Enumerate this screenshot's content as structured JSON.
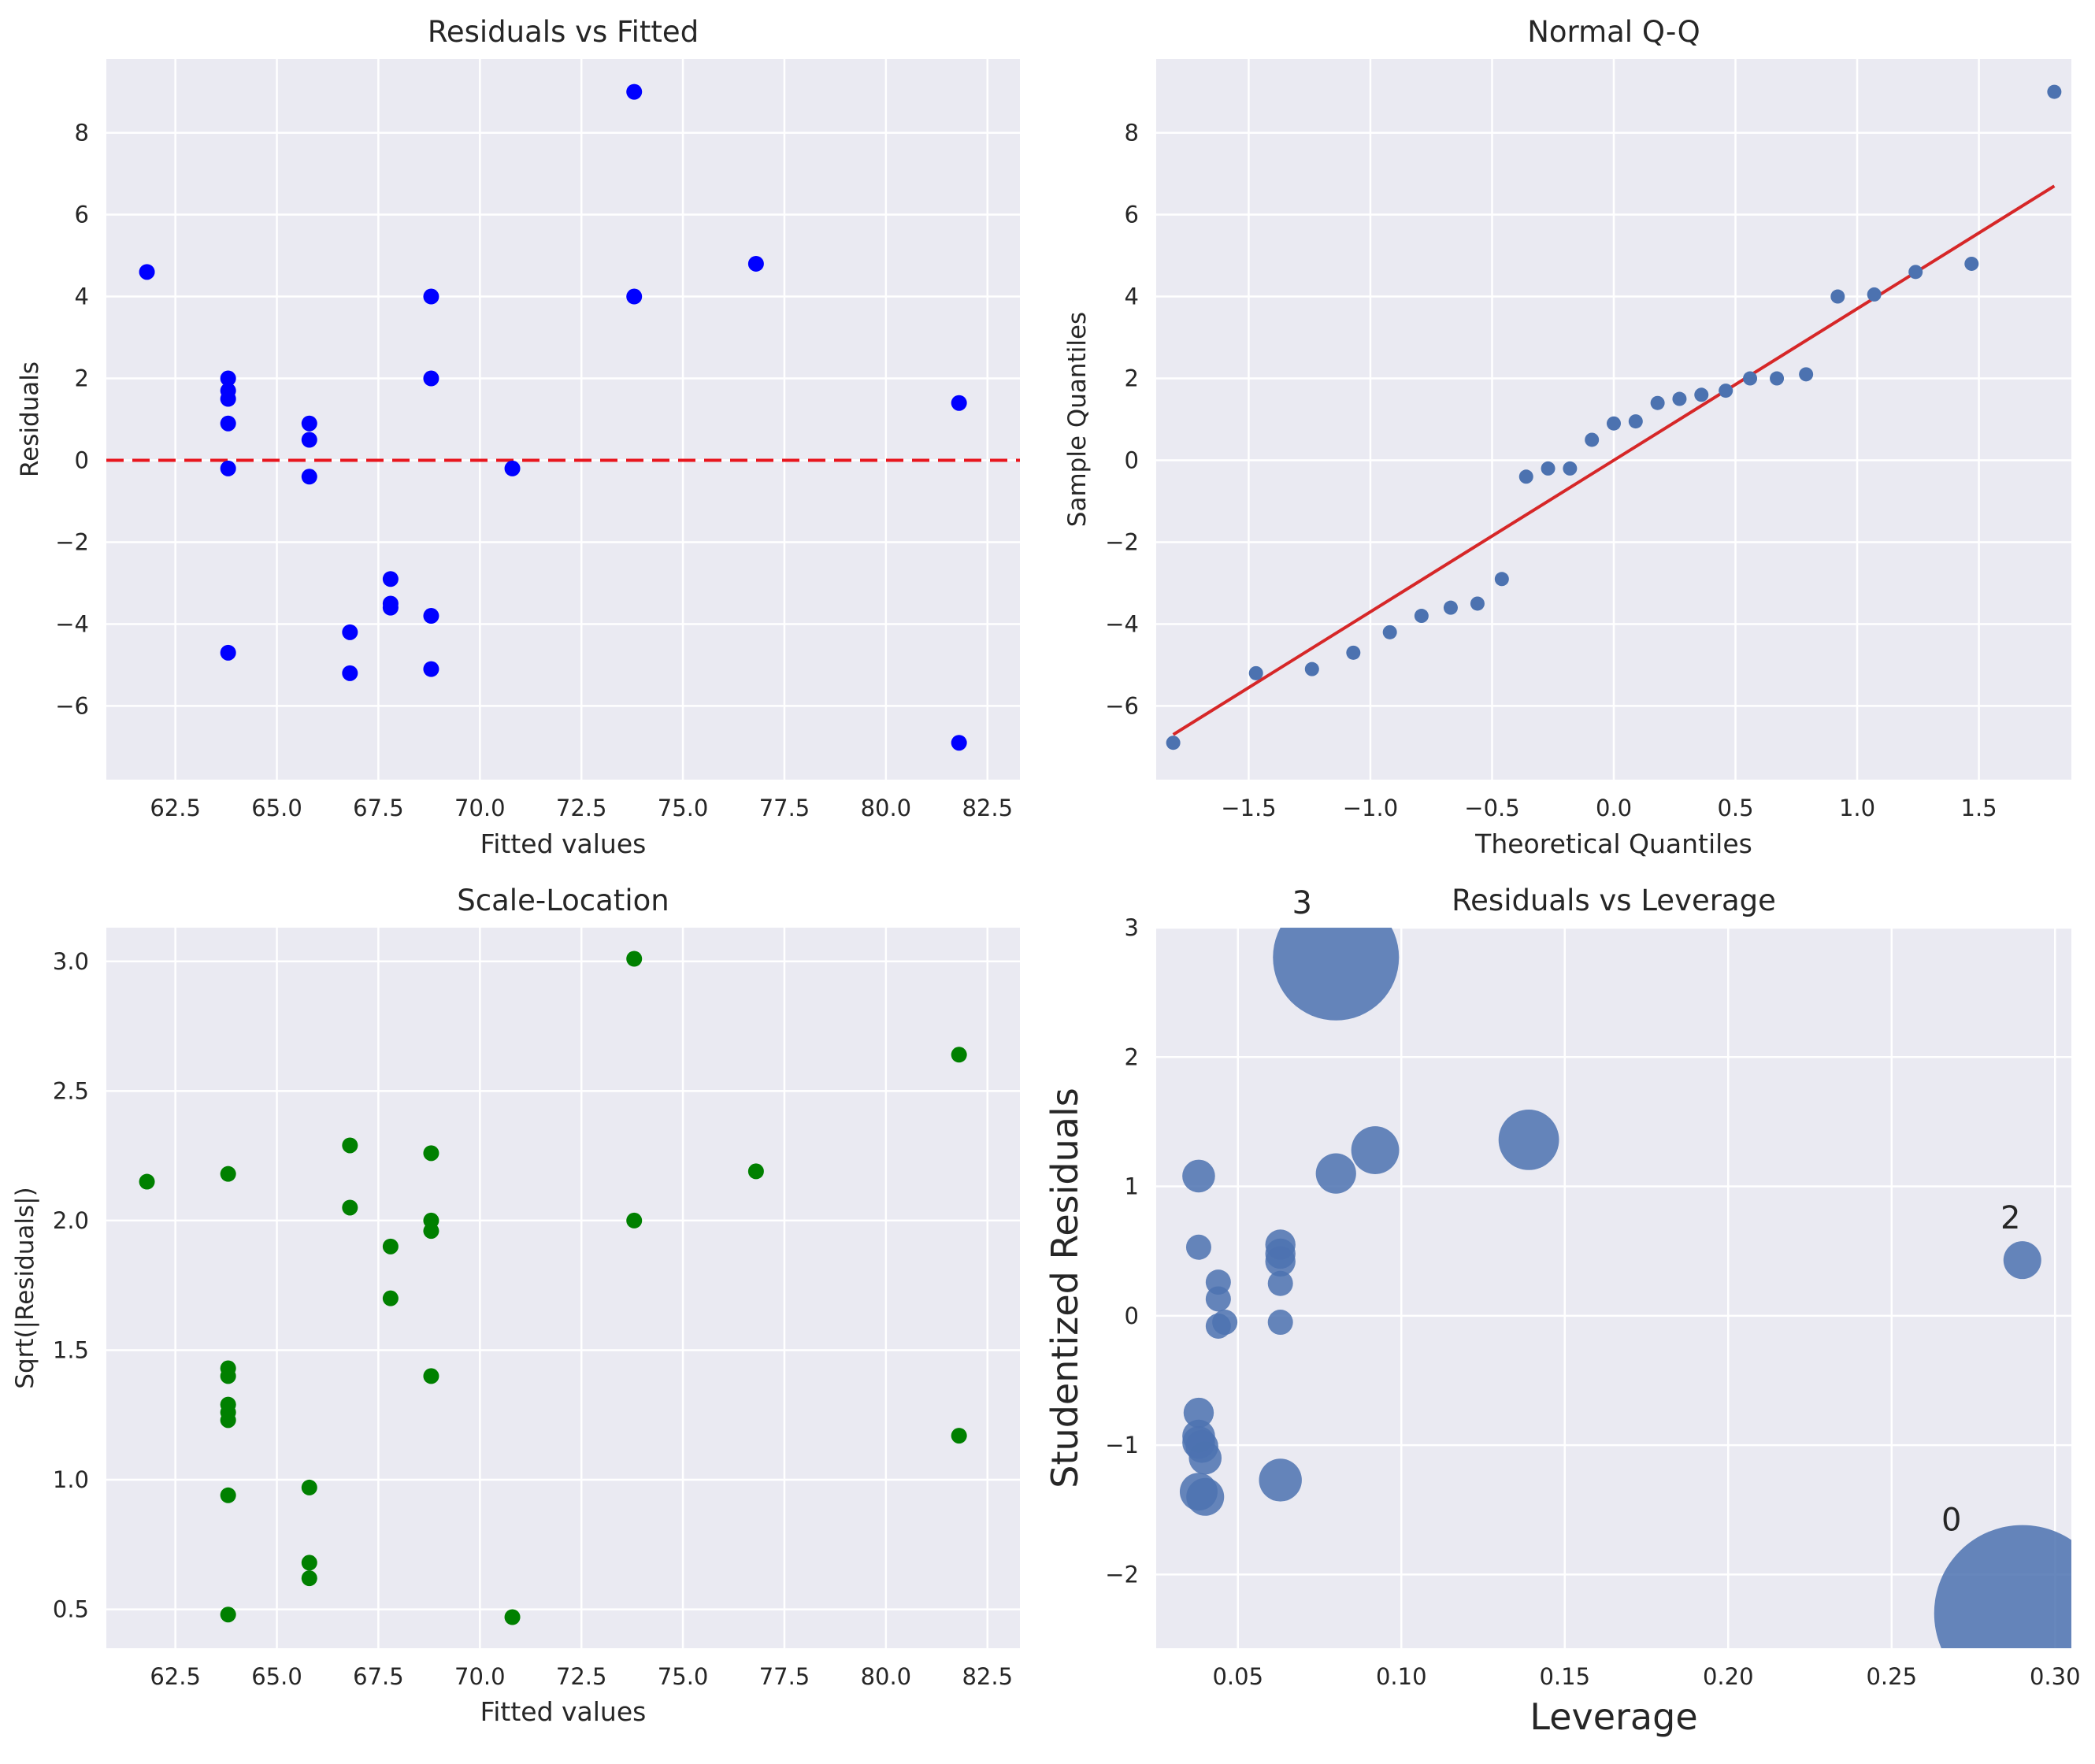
{
  "chart_data": [
    {
      "id": "residuals-vs-fitted",
      "type": "scatter",
      "title": "Residuals vs Fitted",
      "xlabel": "Fitted values",
      "ylabel": "Residuals",
      "xlim": [
        60.8,
        83.3
      ],
      "ylim": [
        -7.8,
        9.8
      ],
      "xticks": [
        62.5,
        65.0,
        67.5,
        70.0,
        72.5,
        75.0,
        77.5,
        80.0,
        82.5
      ],
      "xtick_labels": [
        "62.5",
        "65.0",
        "67.5",
        "70.0",
        "72.5",
        "75.0",
        "77.5",
        "80.0",
        "82.5"
      ],
      "yticks": [
        -6,
        -4,
        -2,
        0,
        2,
        4,
        6,
        8
      ],
      "ytick_labels": [
        "−6",
        "−4",
        "−2",
        "0",
        "2",
        "4",
        "6",
        "8"
      ],
      "color": "#0000ff",
      "hline": {
        "y": 0,
        "color": "#e8171f",
        "style": "dashed"
      },
      "points": [
        {
          "x": 61.8,
          "y": 4.6
        },
        {
          "x": 63.8,
          "y": 2.0
        },
        {
          "x": 63.8,
          "y": 1.7
        },
        {
          "x": 63.8,
          "y": 1.5
        },
        {
          "x": 63.8,
          "y": 0.9
        },
        {
          "x": 63.8,
          "y": -0.2
        },
        {
          "x": 63.8,
          "y": -4.7
        },
        {
          "x": 65.8,
          "y": 0.9
        },
        {
          "x": 65.8,
          "y": 0.5
        },
        {
          "x": 65.8,
          "y": -0.4
        },
        {
          "x": 66.8,
          "y": -4.2
        },
        {
          "x": 66.8,
          "y": -5.2
        },
        {
          "x": 67.8,
          "y": -2.9
        },
        {
          "x": 67.8,
          "y": -3.6
        },
        {
          "x": 67.8,
          "y": -3.5
        },
        {
          "x": 68.8,
          "y": 4.0
        },
        {
          "x": 68.8,
          "y": 2.0
        },
        {
          "x": 68.8,
          "y": -3.8
        },
        {
          "x": 68.8,
          "y": -5.1
        },
        {
          "x": 70.8,
          "y": -0.2
        },
        {
          "x": 73.8,
          "y": 9.0
        },
        {
          "x": 73.8,
          "y": 4.0
        },
        {
          "x": 76.8,
          "y": 4.8
        },
        {
          "x": 81.8,
          "y": 1.4
        },
        {
          "x": 81.8,
          "y": -6.9
        }
      ]
    },
    {
      "id": "normal-qq",
      "type": "scatter",
      "title": "Normal Q-Q",
      "xlabel": "Theoretical Quantiles",
      "ylabel": "Sample Quantiles",
      "xlim": [
        -1.88,
        1.88
      ],
      "ylim": [
        -7.8,
        9.8
      ],
      "xticks": [
        -1.5,
        -1.0,
        -0.5,
        0.0,
        0.5,
        1.0,
        1.5
      ],
      "xtick_labels": [
        "−1.5",
        "−1.0",
        "−0.5",
        "0.0",
        "0.5",
        "1.0",
        "1.5"
      ],
      "yticks": [
        -6,
        -4,
        -2,
        0,
        2,
        4,
        6,
        8
      ],
      "ytick_labels": [
        "−6",
        "−4",
        "−2",
        "0",
        "2",
        "4",
        "6",
        "8"
      ],
      "color": "#4c72b0",
      "reference_line": {
        "x": [
          -1.81,
          1.81
        ],
        "y": [
          -6.7,
          6.7
        ],
        "color": "#d62728"
      },
      "points": [
        {
          "x": -1.81,
          "y": -6.9
        },
        {
          "x": -1.47,
          "y": -5.2
        },
        {
          "x": -1.24,
          "y": -5.1
        },
        {
          "x": -1.07,
          "y": -4.7
        },
        {
          "x": -0.92,
          "y": -4.2
        },
        {
          "x": -0.79,
          "y": -3.8
        },
        {
          "x": -0.67,
          "y": -3.6
        },
        {
          "x": -0.56,
          "y": -3.5
        },
        {
          "x": -0.46,
          "y": -2.9
        },
        {
          "x": -0.36,
          "y": -0.4
        },
        {
          "x": -0.27,
          "y": -0.2
        },
        {
          "x": -0.18,
          "y": -0.2
        },
        {
          "x": -0.09,
          "y": 0.5
        },
        {
          "x": 0.0,
          "y": 0.9
        },
        {
          "x": 0.09,
          "y": 0.95
        },
        {
          "x": 0.18,
          "y": 1.4
        },
        {
          "x": 0.27,
          "y": 1.5
        },
        {
          "x": 0.36,
          "y": 1.6
        },
        {
          "x": 0.46,
          "y": 1.7
        },
        {
          "x": 0.56,
          "y": 2.0
        },
        {
          "x": 0.67,
          "y": 2.0
        },
        {
          "x": 0.79,
          "y": 2.1
        },
        {
          "x": 0.92,
          "y": 4.0
        },
        {
          "x": 1.07,
          "y": 4.05
        },
        {
          "x": 1.24,
          "y": 4.6
        },
        {
          "x": 1.47,
          "y": 4.8
        },
        {
          "x": 1.81,
          "y": 9.0
        }
      ]
    },
    {
      "id": "scale-location",
      "type": "scatter",
      "title": "Scale-Location",
      "xlabel": "Fitted values",
      "ylabel": "Sqrt(|Residuals|)",
      "xlim": [
        60.8,
        83.3
      ],
      "ylim": [
        0.35,
        3.13
      ],
      "xticks": [
        62.5,
        65.0,
        67.5,
        70.0,
        72.5,
        75.0,
        77.5,
        80.0,
        82.5
      ],
      "xtick_labels": [
        "62.5",
        "65.0",
        "67.5",
        "70.0",
        "72.5",
        "75.0",
        "77.5",
        "80.0",
        "82.5"
      ],
      "yticks": [
        0.5,
        1.0,
        1.5,
        2.0,
        2.5,
        3.0
      ],
      "ytick_labels": [
        "0.5",
        "1.0",
        "1.5",
        "2.0",
        "2.5",
        "3.0"
      ],
      "color": "#008000",
      "points": [
        {
          "x": 61.8,
          "y": 2.15
        },
        {
          "x": 63.8,
          "y": 2.18
        },
        {
          "x": 63.8,
          "y": 1.43
        },
        {
          "x": 63.8,
          "y": 1.4
        },
        {
          "x": 63.8,
          "y": 1.29
        },
        {
          "x": 63.8,
          "y": 1.26
        },
        {
          "x": 63.8,
          "y": 1.23
        },
        {
          "x": 63.8,
          "y": 0.94
        },
        {
          "x": 63.8,
          "y": 0.48
        },
        {
          "x": 65.8,
          "y": 0.97
        },
        {
          "x": 65.8,
          "y": 0.68
        },
        {
          "x": 65.8,
          "y": 0.62
        },
        {
          "x": 66.8,
          "y": 2.29
        },
        {
          "x": 66.8,
          "y": 2.05
        },
        {
          "x": 67.8,
          "y": 1.9
        },
        {
          "x": 67.8,
          "y": 1.7
        },
        {
          "x": 68.8,
          "y": 2.26
        },
        {
          "x": 68.8,
          "y": 2.0
        },
        {
          "x": 68.8,
          "y": 1.96
        },
        {
          "x": 68.8,
          "y": 1.4
        },
        {
          "x": 70.8,
          "y": 0.47
        },
        {
          "x": 73.8,
          "y": 3.01
        },
        {
          "x": 73.8,
          "y": 2.0
        },
        {
          "x": 76.8,
          "y": 2.19
        },
        {
          "x": 81.8,
          "y": 2.64
        },
        {
          "x": 81.8,
          "y": 1.17
        }
      ]
    },
    {
      "id": "residuals-vs-leverage",
      "type": "scatter",
      "title": "Residuals vs Leverage",
      "xlabel": "Leverage",
      "ylabel": "Studentized Residuals",
      "xlim": [
        0.025,
        0.305
      ],
      "ylim": [
        -2.57,
        3.0
      ],
      "xticks": [
        0.05,
        0.1,
        0.15,
        0.2,
        0.25,
        0.3
      ],
      "xtick_labels": [
        "0.05",
        "0.10",
        "0.15",
        "0.20",
        "0.25",
        "0.30"
      ],
      "yticks": [
        -2,
        -1,
        0,
        1,
        2,
        3
      ],
      "ytick_labels": [
        "−2",
        "−1",
        "0",
        "1",
        "2",
        "3"
      ],
      "color": "#4c72b0",
      "note": "bubble size is relative influence (unitless)",
      "points": [
        {
          "x": 0.08,
          "y": 2.77,
          "size": 5.0,
          "label": "3"
        },
        {
          "x": 0.038,
          "y": 1.08,
          "size": 1.3
        },
        {
          "x": 0.038,
          "y": 0.53,
          "size": 1.0
        },
        {
          "x": 0.044,
          "y": 0.26,
          "size": 1.0
        },
        {
          "x": 0.044,
          "y": 0.13,
          "size": 1.0
        },
        {
          "x": 0.044,
          "y": -0.08,
          "size": 1.0
        },
        {
          "x": 0.046,
          "y": -0.05,
          "size": 1.0
        },
        {
          "x": 0.038,
          "y": -0.75,
          "size": 1.2
        },
        {
          "x": 0.038,
          "y": -0.93,
          "size": 1.3
        },
        {
          "x": 0.038,
          "y": -0.98,
          "size": 1.3
        },
        {
          "x": 0.039,
          "y": -1.01,
          "size": 1.3
        },
        {
          "x": 0.04,
          "y": -1.1,
          "size": 1.3
        },
        {
          "x": 0.038,
          "y": -1.36,
          "size": 1.5
        },
        {
          "x": 0.04,
          "y": -1.4,
          "size": 1.5
        },
        {
          "x": 0.063,
          "y": 0.55,
          "size": 1.2
        },
        {
          "x": 0.063,
          "y": 0.48,
          "size": 1.2
        },
        {
          "x": 0.063,
          "y": 0.42,
          "size": 1.2
        },
        {
          "x": 0.063,
          "y": 0.25,
          "size": 1.0
        },
        {
          "x": 0.063,
          "y": -0.05,
          "size": 1.0
        },
        {
          "x": 0.063,
          "y": -1.27,
          "size": 1.7
        },
        {
          "x": 0.08,
          "y": 1.1,
          "size": 1.6
        },
        {
          "x": 0.092,
          "y": 1.28,
          "size": 1.9
        },
        {
          "x": 0.139,
          "y": 1.36,
          "size": 2.4
        },
        {
          "x": 0.29,
          "y": 0.43,
          "size": 1.5,
          "label": "2"
        },
        {
          "x": 0.29,
          "y": -2.3,
          "size": 7.0,
          "label": "0"
        }
      ]
    }
  ]
}
